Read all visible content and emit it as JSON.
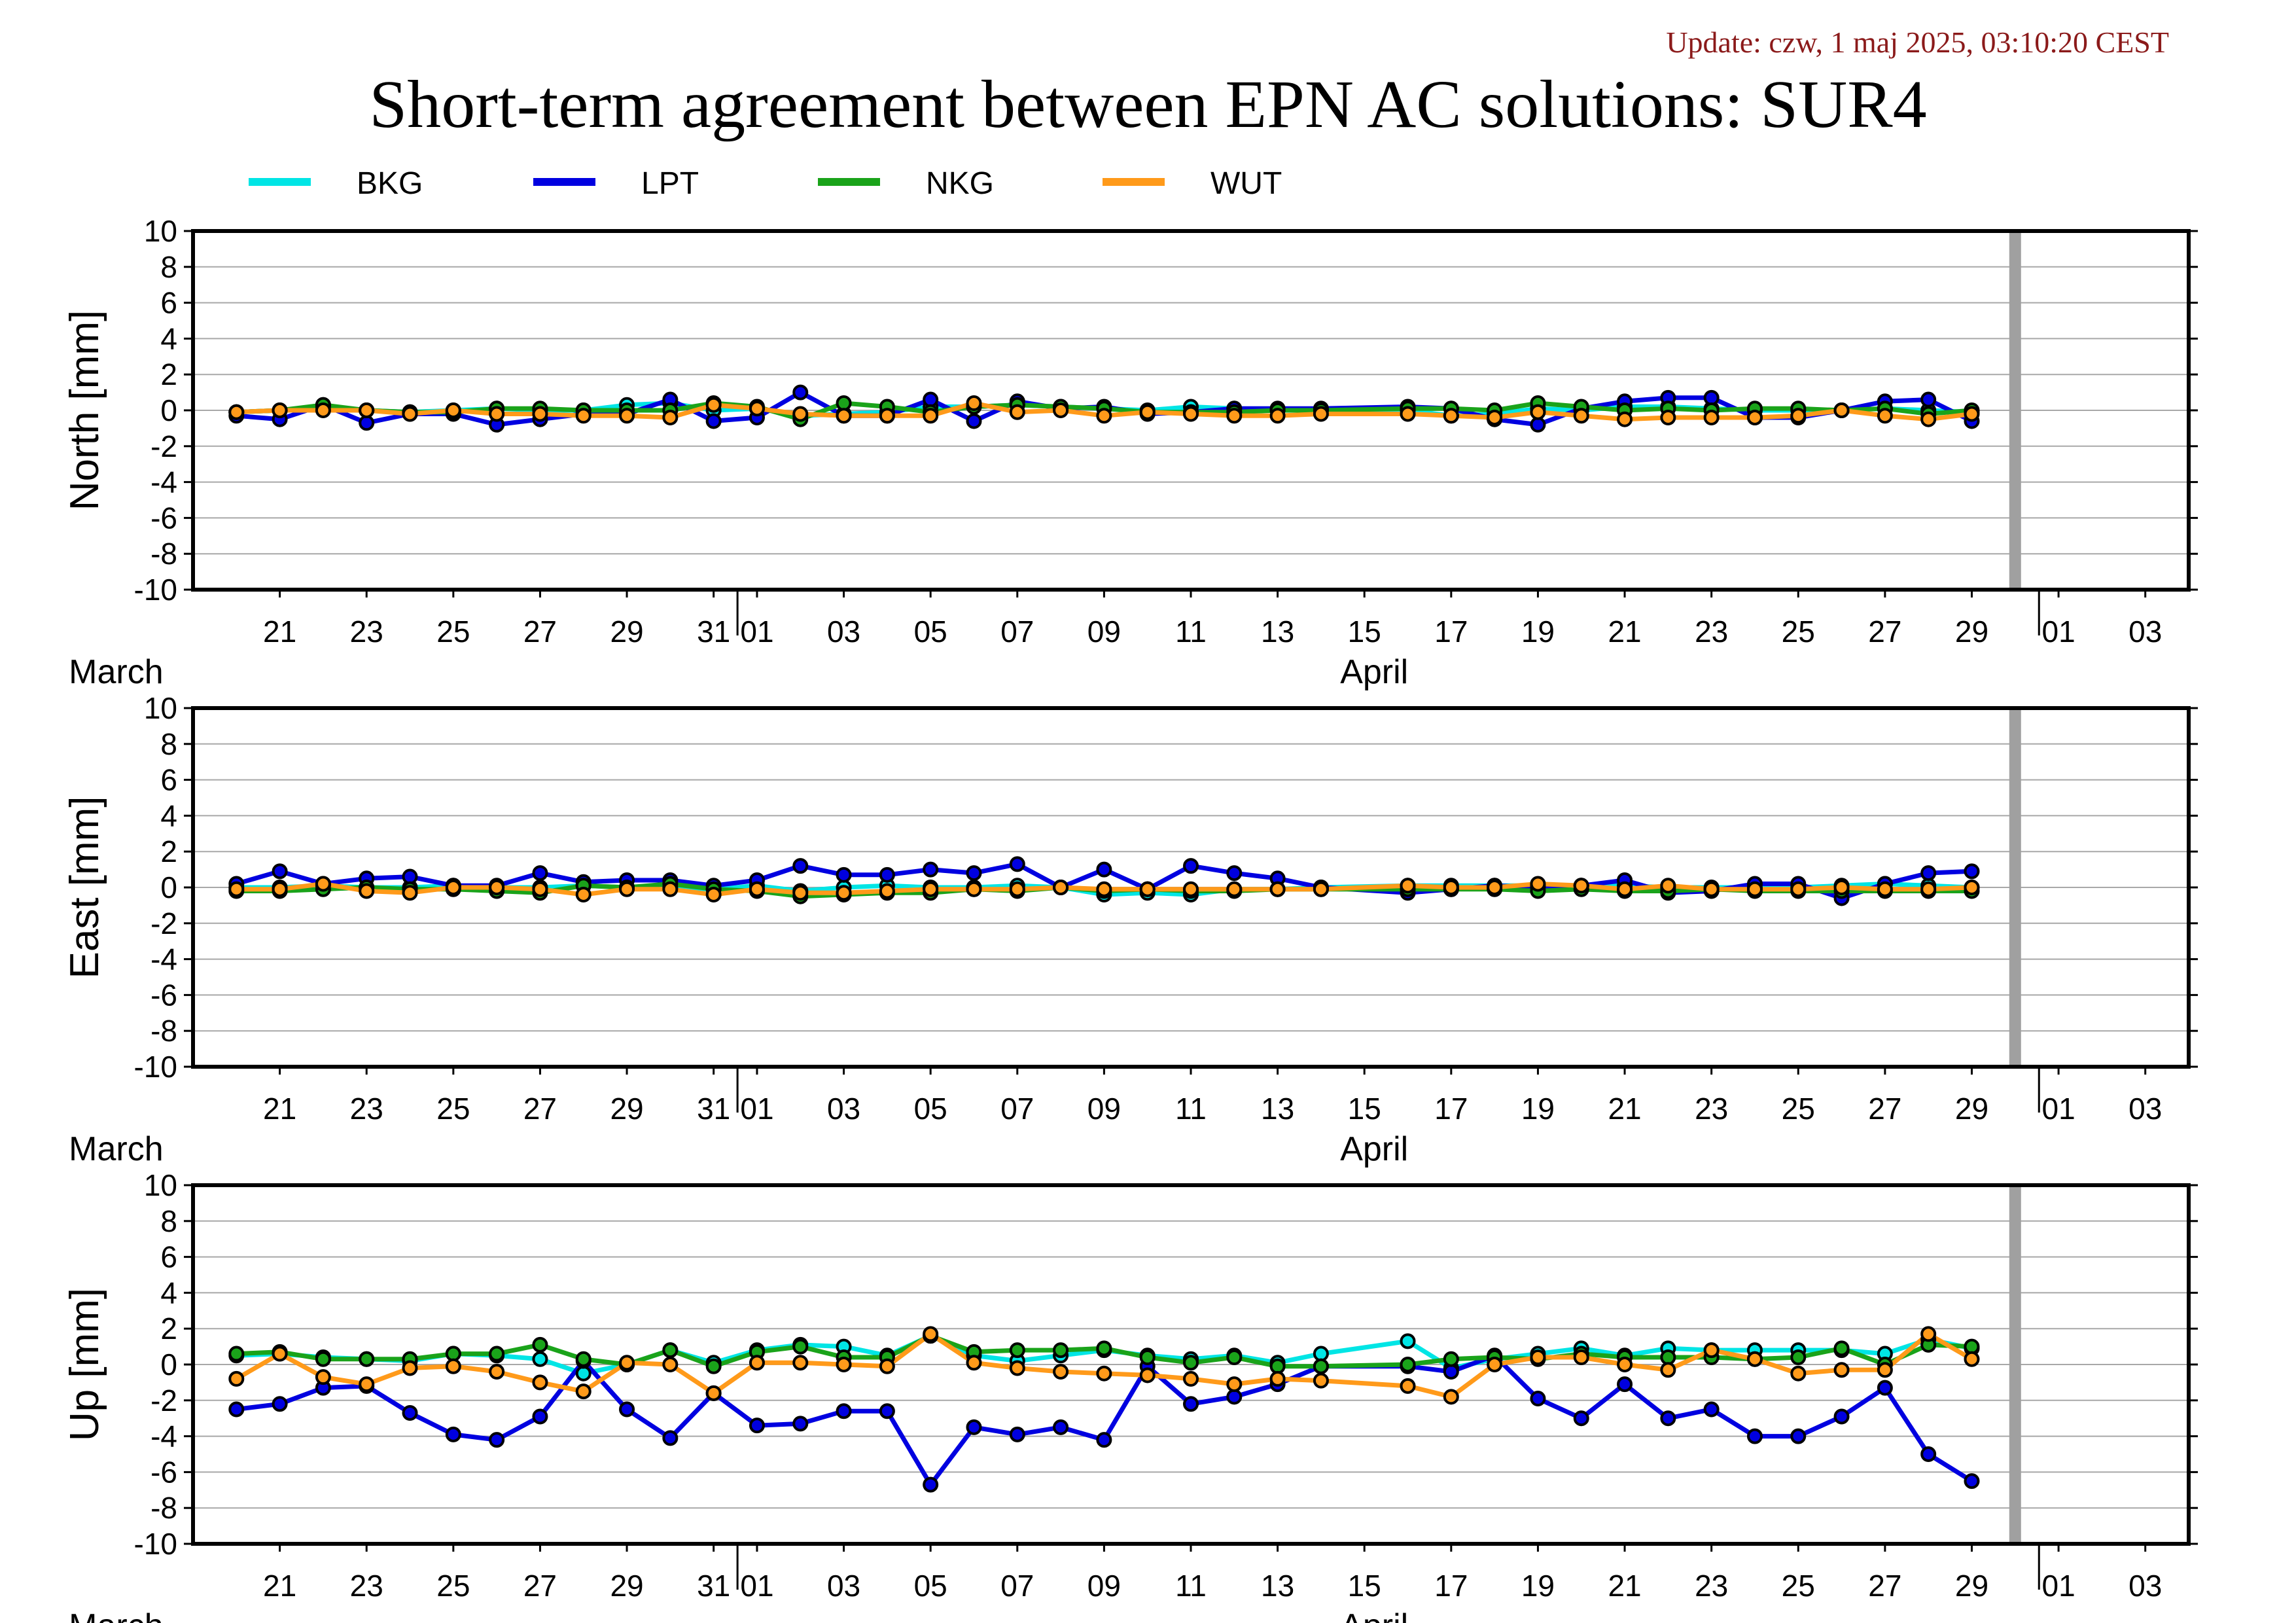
{
  "header": {
    "update": "Update: czw, 1 maj 2025, 03:10:20 CEST",
    "title": "Short-term agreement between EPN AC solutions: SUR4"
  },
  "colors": {
    "BKG": "#00e5e5",
    "LPT": "#0000e0",
    "NKG": "#1aa31a",
    "WUT": "#ff9a1a",
    "marker_stroke": "#000000",
    "gap_bar": "#a0a0a0"
  },
  "chart_data": {
    "type": "line",
    "series_names": [
      "BKG",
      "LPT",
      "NKG",
      "WUT"
    ],
    "ylim": [
      -10,
      10
    ],
    "yticks": [
      "10",
      "8",
      "6",
      "4",
      "2",
      "0",
      "-2",
      "-4",
      "-6",
      "-8",
      "-10"
    ],
    "xlim": [
      "2025-03-19",
      "2025-05-04"
    ],
    "x_tick_labels": [
      "21",
      "23",
      "25",
      "27",
      "29",
      "31",
      "01",
      "03",
      "05",
      "07",
      "09",
      "11",
      "13",
      "15",
      "17",
      "19",
      "21",
      "23",
      "25",
      "27",
      "29",
      "01",
      "03"
    ],
    "month_labels": [
      "March",
      "April"
    ],
    "data_gap_marker": "2025-04-30",
    "days": [
      "03-20",
      "03-21",
      "03-22",
      "03-23",
      "03-24",
      "03-25",
      "03-26",
      "03-27",
      "03-28",
      "03-29",
      "03-30",
      "03-31",
      "04-01",
      "04-02",
      "04-03",
      "04-04",
      "04-05",
      "04-06",
      "04-07",
      "04-08",
      "04-09",
      "04-10",
      "04-11",
      "04-12",
      "04-13",
      "04-14",
      "04-16",
      "04-17",
      "04-18",
      "04-19",
      "04-20",
      "04-21",
      "04-22",
      "04-23",
      "04-24",
      "04-25",
      "04-26",
      "04-27",
      "04-28",
      "04-29"
    ],
    "panels": [
      {
        "ylabel": "North [mm]",
        "series": [
          {
            "name": "BKG",
            "values": [
              -0.1,
              0.0,
              0.2,
              0.0,
              -0.1,
              0.0,
              0.1,
              0.0,
              0.0,
              0.3,
              0.4,
              0.0,
              0.1,
              -0.3,
              -0.2,
              -0.1,
              0.2,
              0.2,
              0.3,
              0.2,
              0.1,
              0.0,
              0.2,
              0.1,
              0.0,
              0.0,
              0.0,
              -0.3,
              -0.2,
              0.1,
              0.0,
              0.2,
              0.2,
              0.1,
              0.0,
              0.0,
              0.0,
              0.1,
              0.0,
              -0.1
            ]
          },
          {
            "name": "LPT",
            "values": [
              -0.3,
              -0.5,
              0.3,
              -0.7,
              -0.2,
              -0.2,
              -0.8,
              -0.5,
              -0.2,
              -0.2,
              0.6,
              -0.6,
              -0.4,
              1.0,
              -0.3,
              -0.3,
              0.6,
              -0.6,
              0.5,
              0.1,
              0.2,
              -0.2,
              -0.1,
              0.1,
              0.1,
              0.1,
              0.2,
              0.1,
              -0.5,
              -0.8,
              0.1,
              0.5,
              0.7,
              0.7,
              -0.4,
              -0.4,
              0.0,
              0.5,
              0.6,
              -0.6
            ]
          },
          {
            "name": "NKG",
            "values": [
              -0.1,
              0.0,
              0.3,
              0.0,
              -0.1,
              -0.1,
              0.1,
              0.1,
              0.0,
              0.0,
              0.0,
              0.4,
              0.2,
              -0.5,
              0.4,
              0.2,
              -0.1,
              0.2,
              0.3,
              0.2,
              0.1,
              -0.1,
              -0.1,
              -0.1,
              0.0,
              0.0,
              0.1,
              0.1,
              0.0,
              0.4,
              0.2,
              0.0,
              0.1,
              0.0,
              0.1,
              0.1,
              0.0,
              0.1,
              -0.2,
              0.0
            ]
          },
          {
            "name": "WUT",
            "values": [
              -0.1,
              0.0,
              0.0,
              0.0,
              -0.2,
              0.0,
              -0.2,
              -0.2,
              -0.3,
              -0.3,
              -0.4,
              0.3,
              0.1,
              -0.2,
              -0.3,
              -0.3,
              -0.3,
              0.4,
              -0.1,
              0.0,
              -0.3,
              -0.1,
              -0.2,
              -0.3,
              -0.3,
              -0.2,
              -0.2,
              -0.3,
              -0.4,
              -0.1,
              -0.3,
              -0.5,
              -0.4,
              -0.4,
              -0.4,
              -0.3,
              0.0,
              -0.3,
              -0.5,
              -0.2
            ]
          }
        ]
      },
      {
        "ylabel": "East [mm]",
        "series": [
          {
            "name": "BKG",
            "values": [
              0.0,
              0.0,
              0.1,
              0.0,
              0.0,
              0.1,
              0.0,
              0.0,
              0.1,
              0.0,
              0.0,
              -0.1,
              0.1,
              -0.2,
              0.0,
              0.1,
              0.0,
              0.0,
              0.1,
              0.0,
              -0.4,
              -0.3,
              -0.4,
              -0.1,
              -0.1,
              0.0,
              0.1,
              0.1,
              0.1,
              0.1,
              0.1,
              0.1,
              0.0,
              0.0,
              0.0,
              0.0,
              0.1,
              0.2,
              0.1,
              0.0
            ]
          },
          {
            "name": "LPT",
            "values": [
              0.2,
              0.9,
              0.2,
              0.5,
              0.6,
              0.1,
              0.1,
              0.8,
              0.3,
              0.4,
              0.4,
              0.1,
              0.4,
              1.2,
              0.7,
              0.7,
              1.0,
              0.8,
              1.3,
              0.0,
              1.0,
              -0.1,
              1.2,
              0.8,
              0.5,
              0.0,
              -0.3,
              -0.1,
              0.1,
              0.0,
              0.1,
              0.4,
              -0.3,
              -0.2,
              0.2,
              0.2,
              -0.6,
              0.2,
              0.8,
              0.9
            ]
          },
          {
            "name": "NKG",
            "values": [
              -0.2,
              -0.2,
              -0.1,
              0.0,
              -0.1,
              -0.1,
              -0.2,
              -0.3,
              0.1,
              0.0,
              0.2,
              -0.1,
              -0.2,
              -0.5,
              -0.4,
              -0.3,
              -0.3,
              -0.1,
              -0.2,
              0.0,
              -0.2,
              -0.1,
              -0.2,
              -0.2,
              -0.1,
              -0.1,
              -0.1,
              -0.1,
              -0.1,
              -0.2,
              -0.1,
              -0.2,
              -0.2,
              -0.1,
              -0.2,
              -0.2,
              -0.2,
              -0.2,
              -0.2,
              -0.2
            ]
          },
          {
            "name": "WUT",
            "values": [
              -0.1,
              -0.1,
              0.2,
              -0.2,
              -0.3,
              0.0,
              0.0,
              -0.1,
              -0.4,
              -0.1,
              -0.1,
              -0.4,
              -0.1,
              -0.3,
              -0.3,
              -0.2,
              -0.1,
              -0.1,
              -0.1,
              0.0,
              -0.1,
              -0.1,
              -0.1,
              -0.1,
              -0.1,
              -0.1,
              0.1,
              0.0,
              0.0,
              0.2,
              0.1,
              -0.1,
              0.1,
              -0.1,
              -0.1,
              -0.1,
              0.0,
              -0.1,
              -0.1,
              0.0
            ]
          }
        ]
      },
      {
        "ylabel": "Up [mm]",
        "series": [
          {
            "name": "BKG",
            "values": [
              0.5,
              0.6,
              0.4,
              0.3,
              0.2,
              0.6,
              0.5,
              0.3,
              -0.5,
              0.0,
              0.8,
              0.1,
              0.8,
              1.1,
              1.0,
              0.5,
              1.6,
              0.5,
              0.2,
              0.5,
              0.8,
              0.5,
              0.3,
              0.5,
              0.1,
              0.6,
              1.3,
              -0.2,
              0.3,
              0.6,
              0.9,
              0.5,
              0.9,
              0.8,
              0.8,
              0.8,
              0.8,
              0.6,
              1.4,
              0.9
            ]
          },
          {
            "name": "LPT",
            "values": [
              -2.5,
              -2.2,
              -1.3,
              -1.2,
              -2.7,
              -3.9,
              -4.2,
              -2.9,
              0.2,
              -2.5,
              -4.1,
              -1.6,
              -3.4,
              -3.3,
              -2.6,
              -2.6,
              -6.7,
              -3.5,
              -3.9,
              -3.5,
              -4.2,
              -0.1,
              -2.2,
              -1.8,
              -1.1,
              -0.1,
              -0.1,
              -0.4,
              0.5,
              -1.9,
              -3.0,
              -1.1,
              -3.0,
              -2.5,
              -4.0,
              -4.0,
              -2.9,
              -1.3,
              -5.0,
              -6.5
            ]
          },
          {
            "name": "NKG",
            "values": [
              0.6,
              0.7,
              0.3,
              0.3,
              0.3,
              0.6,
              0.6,
              1.1,
              0.3,
              0.0,
              0.8,
              -0.1,
              0.7,
              1.0,
              0.4,
              0.4,
              1.6,
              0.7,
              0.8,
              0.8,
              0.9,
              0.4,
              0.1,
              0.4,
              -0.1,
              -0.1,
              0.0,
              0.3,
              0.4,
              0.3,
              0.6,
              0.4,
              0.4,
              0.4,
              0.3,
              0.4,
              0.9,
              0.0,
              1.1,
              1.0
            ]
          },
          {
            "name": "WUT",
            "values": [
              -0.8,
              0.6,
              -0.7,
              -1.1,
              -0.2,
              -0.1,
              -0.4,
              -1.0,
              -1.5,
              0.1,
              0.0,
              -1.6,
              0.1,
              0.1,
              0.0,
              -0.1,
              1.7,
              0.1,
              -0.2,
              -0.4,
              -0.5,
              -0.6,
              -0.8,
              -1.1,
              -0.8,
              -0.9,
              -1.2,
              -1.8,
              0.0,
              0.4,
              0.4,
              0.0,
              -0.3,
              0.8,
              0.3,
              -0.5,
              -0.3,
              -0.3,
              1.7,
              0.3
            ]
          }
        ]
      }
    ]
  }
}
